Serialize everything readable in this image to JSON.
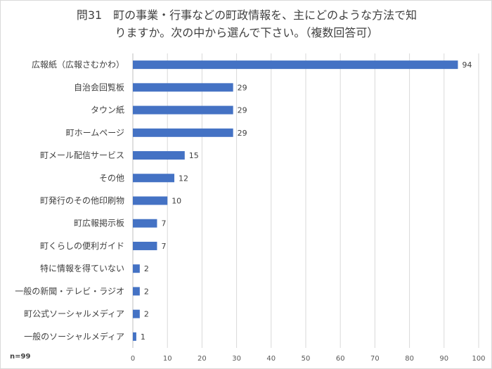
{
  "chart_data": {
    "type": "bar",
    "orientation": "horizontal",
    "title_line1": "問31　町の事業・行事などの町政情報を、主にどのような方法で知",
    "title_line2": "りますか。次の中から選んで下さい。（複数回答可）",
    "categories": [
      "広報紙（広報さむかわ）",
      "自治会回覧板",
      "タウン紙",
      "町ホームページ",
      "町メール配信サービス",
      "その他",
      "町発行のその他印刷物",
      "町広報掲示板",
      "町くらしの便利ガイド",
      "特に情報を得ていない",
      "一般の新聞・テレビ・ラジオ",
      "町公式ソーシャルメディア",
      "一般のソーシャルメディア"
    ],
    "values": [
      94,
      29,
      29,
      29,
      15,
      12,
      10,
      7,
      7,
      2,
      2,
      2,
      1
    ],
    "xlim": [
      0,
      100
    ],
    "xticks": [
      0,
      10,
      20,
      30,
      40,
      50,
      60,
      70,
      80,
      90,
      100
    ],
    "grid": true,
    "bar_color": "#4472c4",
    "sample_note": "n=99"
  }
}
